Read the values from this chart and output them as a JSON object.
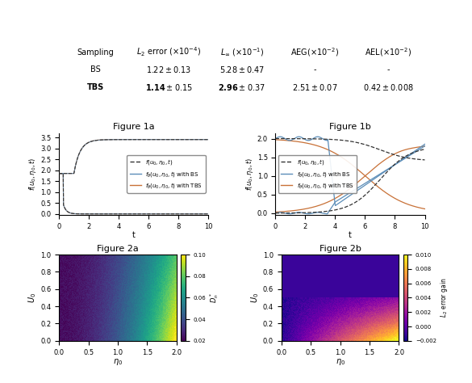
{
  "table_headers": [
    "Sampling",
    "L_2 error (\\times10^{-4})",
    "L_\\infty (\\times10^{-1})",
    "AEG(\\times10^{-2})",
    "AEL(\\times10^{-2})"
  ],
  "table_rows": [
    [
      "BS",
      "1.22 \\pm 0.13",
      "5.28 \\pm 0.47",
      "-",
      "-"
    ],
    [
      "TBS",
      "1.14 \\pm 0.15",
      "2.96 \\pm 0.37",
      "2.51 \\pm 0.07",
      "0.42 \\pm 0.008"
    ]
  ],
  "fig1a_title": "Figure 1a",
  "fig1b_title": "Figure 1b",
  "fig2a_title": "Figure 2a",
  "fig2b_title": "Figure 2b",
  "ylabel_1": "f(u_0, \\eta_0, t)",
  "xlabel_1": "t",
  "legend_labels": [
    "f(u_0, \\eta_0, t)",
    "f_\\theta(u_0, \\eta_0, t) with BS",
    "f_\\theta(u_0, \\eta_0, t) with TBS"
  ],
  "color_true": "#333333",
  "color_BS": "#5b8db8",
  "color_TBS": "#c87137",
  "color_bg": "#ffffff",
  "fig2a_cbar_label": "D_n^*",
  "fig2b_cbar_label": "L_2 error gain",
  "xlabel_2": "\\eta_0",
  "ylabel_2": "U_0"
}
